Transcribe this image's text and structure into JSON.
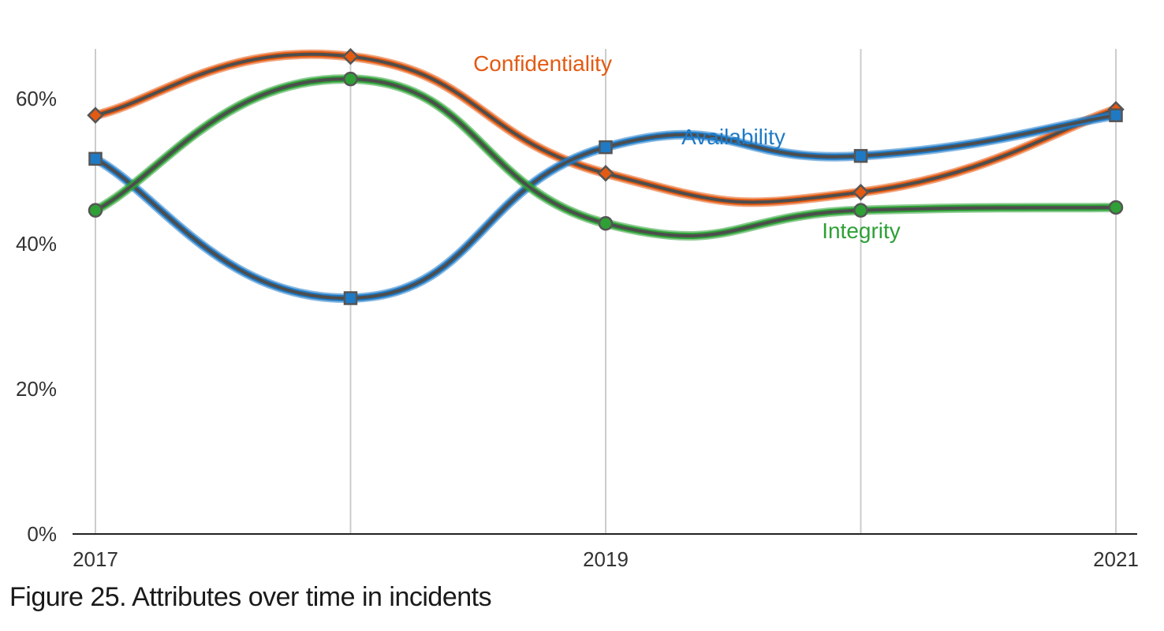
{
  "chart_data": {
    "type": "line",
    "x": [
      2017,
      2018,
      2019,
      2020,
      2021
    ],
    "x_tick_labels": [
      "2017",
      "2019",
      "2021"
    ],
    "x_tick_values": [
      2017,
      2019,
      2021
    ],
    "y_tick_labels": [
      "0%",
      "20%",
      "40%",
      "60%"
    ],
    "y_tick_values": [
      0,
      20,
      40,
      60
    ],
    "ylim": [
      0,
      67
    ],
    "grid": "vertical",
    "series": [
      {
        "name": "Confidentiality",
        "color": "#e35a12",
        "marker": "diamond",
        "values": [
          57.7,
          65.8,
          49.7,
          47.1,
          58.5
        ]
      },
      {
        "name": "Availability",
        "color": "#1f7ac6",
        "marker": "square",
        "values": [
          51.7,
          32.5,
          53.3,
          52.1,
          57.7
        ]
      },
      {
        "name": "Integrity",
        "color": "#2ea036",
        "marker": "circle",
        "values": [
          44.6,
          62.7,
          42.8,
          44.6,
          45.0
        ]
      }
    ]
  },
  "caption": "Figure 25. Attributes over time in incidents"
}
